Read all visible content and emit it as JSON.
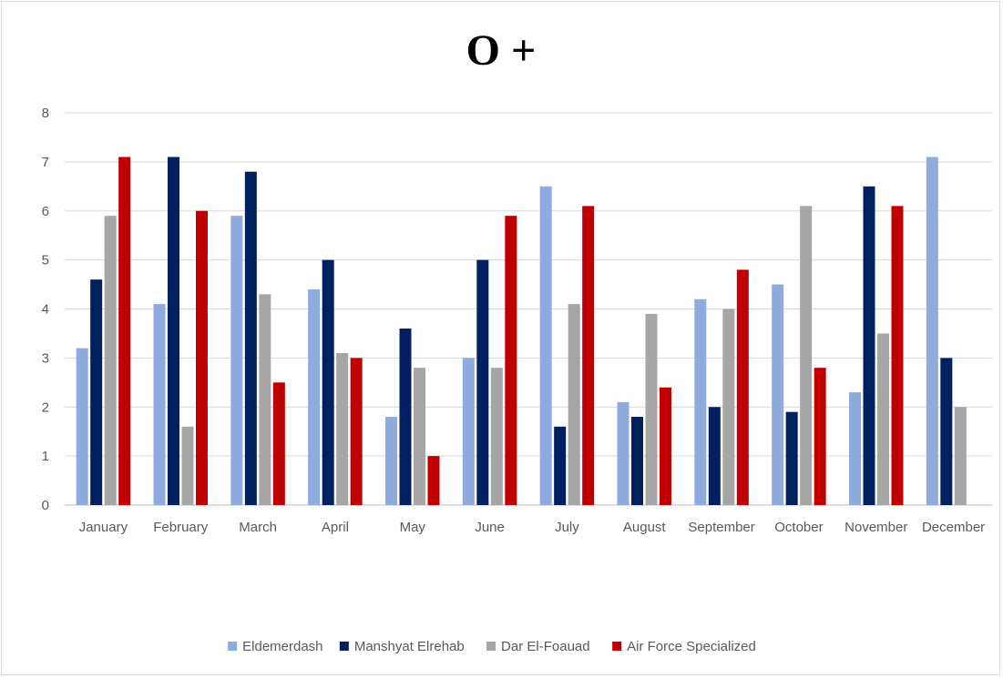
{
  "chart_data": {
    "type": "bar",
    "title": "O +",
    "xlabel": "",
    "ylabel": "",
    "ylim": [
      0,
      8
    ],
    "yticks": [
      0,
      1,
      2,
      3,
      4,
      5,
      6,
      7,
      8
    ],
    "grid": true,
    "legend_position": "bottom",
    "categories": [
      "January",
      "February",
      "March",
      "April",
      "May",
      "June",
      "July",
      "August",
      "September",
      "October",
      "November",
      "December"
    ],
    "series": [
      {
        "name": "Eldemerdash",
        "color": "#8faadc",
        "values": [
          3.2,
          4.1,
          5.9,
          4.4,
          1.8,
          3.0,
          6.5,
          2.1,
          4.2,
          4.5,
          2.3,
          7.1
        ]
      },
      {
        "name": "Manshyat Elrehab",
        "color": "#002060",
        "values": [
          4.6,
          7.1,
          6.8,
          5.0,
          3.6,
          5.0,
          1.6,
          1.8,
          2.0,
          1.9,
          6.5,
          3.0
        ]
      },
      {
        "name": "Dar El-Foauad",
        "color": "#a6a6a6",
        "values": [
          5.9,
          1.6,
          4.3,
          3.1,
          2.8,
          2.8,
          4.1,
          3.9,
          4.0,
          6.1,
          3.5,
          2.0
        ]
      },
      {
        "name": "Air Force Specialized",
        "color": "#c00000",
        "values": [
          7.1,
          6.0,
          2.5,
          3.0,
          1.0,
          5.9,
          6.1,
          2.4,
          4.8,
          2.8,
          6.1,
          null
        ]
      }
    ]
  }
}
